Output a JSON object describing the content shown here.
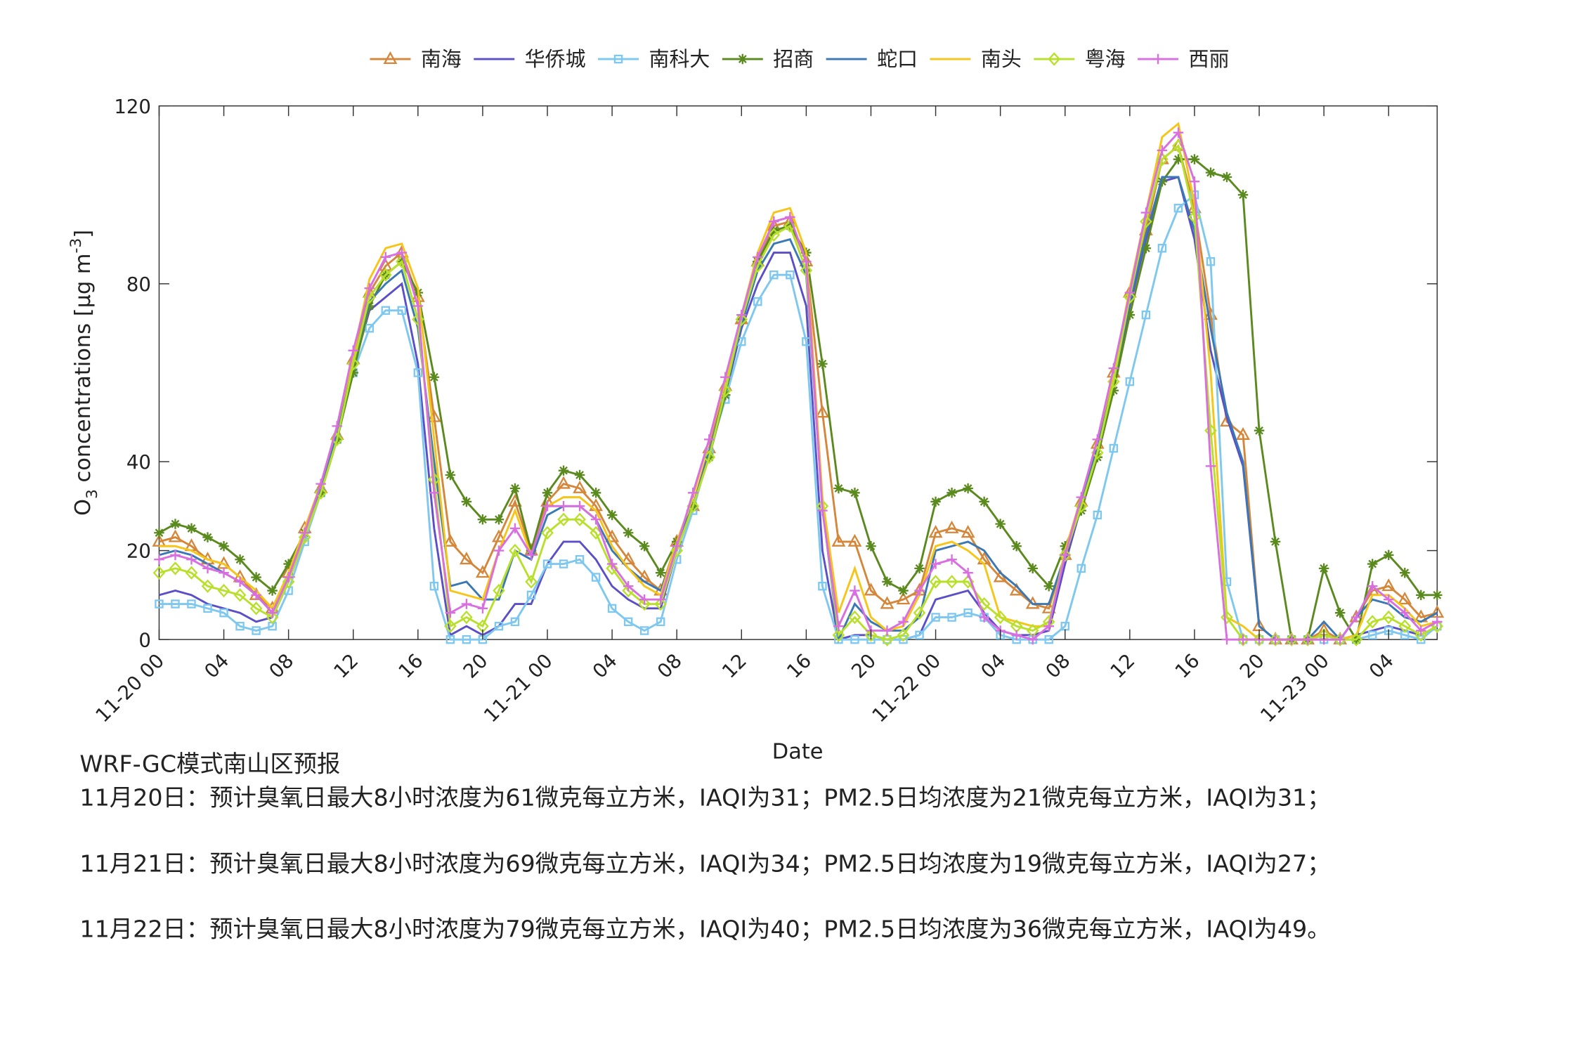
{
  "chart_data": {
    "type": "line",
    "xlabel": "Date",
    "ylabel": [
      "O",
      "3",
      " concentrations [μg m",
      "-3",
      "]"
    ],
    "x": [
      0,
      1,
      2,
      3,
      4,
      5,
      6,
      7,
      8,
      9,
      10,
      11,
      12,
      13,
      14,
      15,
      16,
      17,
      18,
      19,
      20,
      21,
      22,
      23,
      24,
      25,
      26,
      27,
      28,
      29,
      30,
      31,
      32,
      33,
      34,
      35,
      36,
      37,
      38,
      39,
      40,
      41,
      42,
      43,
      44,
      45,
      46,
      47,
      48,
      49,
      50,
      51,
      52,
      53,
      54,
      55,
      56,
      57,
      58,
      59,
      60,
      61,
      62,
      63,
      64,
      65,
      66,
      67,
      68,
      69,
      70,
      71,
      72,
      73,
      74,
      75,
      76,
      77,
      78,
      79
    ],
    "xlim": [
      0,
      79
    ],
    "xticks": [
      {
        "value": 0,
        "label": "11-20 00"
      },
      {
        "value": 4,
        "label": "04"
      },
      {
        "value": 8,
        "label": "08"
      },
      12,
      16,
      20,
      {
        "value": 24,
        "label": "11-21 00"
      },
      {
        "value": 28,
        "label": "04"
      },
      {
        "value": 32,
        "label": "08"
      },
      {
        "value": 36,
        "label": "12"
      },
      {
        "value": 40,
        "label": "16"
      },
      {
        "value": 44,
        "label": "20"
      },
      {
        "value": 48,
        "label": "11-22 00"
      },
      {
        "value": 52,
        "label": "04"
      },
      {
        "value": 56,
        "label": "08"
      },
      {
        "value": 60,
        "label": "12"
      },
      {
        "value": 64,
        "label": "16"
      },
      {
        "value": 68,
        "label": "20"
      },
      {
        "value": 72,
        "label": "11-23 00"
      },
      {
        "value": 76,
        "label": "04"
      }
    ],
    "ylim": [
      0,
      120
    ],
    "yticks": [
      0,
      20,
      40,
      80,
      120
    ],
    "grid": false,
    "legend": "top",
    "series": [
      {
        "name": "南海",
        "color": "#d4873a",
        "marker": "triangle",
        "values": [
          22,
          23,
          21,
          18,
          17,
          14,
          10,
          7,
          15,
          25,
          34,
          46,
          63,
          78,
          84,
          87,
          77,
          50,
          22,
          18,
          15,
          23,
          31,
          20,
          31,
          35,
          34,
          30,
          23,
          18,
          14,
          11,
          22,
          30,
          43,
          57,
          72,
          85,
          93,
          94,
          85,
          51,
          22,
          22,
          11,
          8,
          9,
          11,
          24,
          25,
          24,
          18,
          14,
          11,
          8,
          7,
          19,
          31,
          44,
          60,
          78,
          92,
          108,
          111,
          97,
          73,
          49,
          46,
          3,
          0,
          0,
          0,
          2,
          0,
          5,
          11,
          12,
          9,
          5,
          6
        ]
      },
      {
        "name": "华侨城",
        "color": "#5b4fc8",
        "marker": "none",
        "values": [
          10,
          11,
          10,
          8,
          7,
          6,
          4,
          5,
          13,
          23,
          33,
          45,
          61,
          74,
          77,
          80,
          62,
          25,
          1,
          3,
          1,
          3,
          8,
          8,
          17,
          22,
          22,
          18,
          12,
          9,
          7,
          7,
          20,
          30,
          42,
          55,
          70,
          80,
          87,
          87,
          75,
          20,
          0,
          1,
          1,
          0,
          0,
          1,
          9,
          10,
          11,
          6,
          2,
          1,
          1,
          2,
          17,
          30,
          43,
          58,
          75,
          90,
          103,
          104,
          90,
          65,
          50,
          39,
          3,
          0,
          0,
          0,
          1,
          0,
          1,
          2,
          3,
          2,
          1,
          3
        ]
      },
      {
        "name": "南科大",
        "color": "#7ec8f0",
        "marker": "square",
        "values": [
          8,
          8,
          8,
          7,
          6,
          3,
          2,
          3,
          11,
          22,
          33,
          45,
          60,
          70,
          74,
          74,
          60,
          12,
          0,
          0,
          0,
          3,
          4,
          10,
          17,
          17,
          18,
          14,
          7,
          4,
          2,
          4,
          18,
          29,
          42,
          54,
          67,
          76,
          82,
          82,
          67,
          12,
          0,
          0,
          0,
          0,
          0,
          1,
          5,
          5,
          6,
          5,
          1,
          0,
          0,
          0,
          3,
          16,
          28,
          43,
          58,
          73,
          88,
          97,
          100,
          85,
          13,
          0,
          0,
          0,
          0,
          0,
          0,
          0,
          0,
          1,
          2,
          1,
          0,
          3
        ]
      },
      {
        "name": "招商",
        "color": "#5a8a1e",
        "marker": "star",
        "values": [
          24,
          26,
          25,
          23,
          21,
          18,
          14,
          11,
          17,
          24,
          33,
          45,
          60,
          75,
          82,
          85,
          78,
          59,
          37,
          31,
          27,
          27,
          34,
          20,
          33,
          38,
          37,
          33,
          28,
          24,
          21,
          15,
          22,
          30,
          41,
          55,
          72,
          85,
          92,
          93,
          87,
          62,
          34,
          33,
          21,
          13,
          11,
          16,
          31,
          33,
          34,
          31,
          26,
          21,
          16,
          12,
          21,
          29,
          41,
          56,
          73,
          88,
          103,
          108,
          108,
          105,
          104,
          100,
          47,
          22,
          0,
          0,
          16,
          6,
          0,
          17,
          19,
          15,
          10,
          10
        ]
      },
      {
        "name": "蛇口",
        "color": "#3a78b5",
        "marker": "none",
        "values": [
          19,
          20,
          19,
          17,
          15,
          13,
          10,
          6,
          14,
          23,
          34,
          46,
          62,
          76,
          80,
          83,
          70,
          40,
          12,
          13,
          9,
          9,
          20,
          18,
          28,
          30,
          30,
          27,
          20,
          16,
          13,
          11,
          21,
          30,
          42,
          56,
          71,
          83,
          89,
          90,
          82,
          30,
          0,
          8,
          4,
          2,
          2,
          5,
          20,
          21,
          22,
          20,
          15,
          12,
          8,
          8,
          19,
          31,
          43,
          58,
          76,
          91,
          104,
          104,
          92,
          70,
          51,
          40,
          3,
          0,
          0,
          0,
          4,
          0,
          5,
          9,
          8,
          5,
          4,
          6
        ]
      },
      {
        "name": "南头",
        "color": "#f5c518",
        "marker": "none",
        "values": [
          21,
          21,
          20,
          18,
          17,
          14,
          11,
          7,
          15,
          25,
          35,
          48,
          64,
          81,
          88,
          89,
          79,
          45,
          11,
          10,
          9,
          20,
          29,
          19,
          30,
          32,
          32,
          29,
          21,
          16,
          12,
          10,
          22,
          32,
          45,
          58,
          73,
          87,
          96,
          97,
          87,
          32,
          6,
          16,
          5,
          2,
          3,
          10,
          21,
          22,
          20,
          17,
          5,
          4,
          3,
          3,
          20,
          32,
          45,
          60,
          79,
          96,
          113,
          116,
          98,
          60,
          5,
          3,
          0,
          0,
          0,
          0,
          0,
          0,
          1,
          10,
          10,
          7,
          3,
          4
        ]
      },
      {
        "name": "粤海",
        "color": "#b8e02a",
        "marker": "diamond",
        "values": [
          15,
          16,
          15,
          12,
          11,
          10,
          7,
          5,
          13,
          23,
          33,
          45,
          62,
          77,
          82,
          85,
          72,
          36,
          3,
          5,
          3,
          11,
          20,
          13,
          24,
          27,
          27,
          24,
          16,
          11,
          8,
          8,
          20,
          30,
          41,
          56,
          72,
          84,
          91,
          93,
          83,
          30,
          1,
          5,
          1,
          0,
          1,
          6,
          13,
          13,
          13,
          8,
          5,
          3,
          2,
          4,
          19,
          30,
          42,
          58,
          77,
          94,
          108,
          111,
          95,
          47,
          5,
          0,
          0,
          0,
          0,
          0,
          1,
          0,
          0,
          4,
          5,
          3,
          1,
          3
        ]
      },
      {
        "name": "西丽",
        "color": "#d86ee0",
        "marker": "plus",
        "values": [
          18,
          19,
          18,
          16,
          15,
          13,
          10,
          6,
          14,
          24,
          35,
          48,
          65,
          79,
          86,
          87,
          75,
          33,
          6,
          8,
          7,
          20,
          25,
          19,
          30,
          30,
          30,
          27,
          17,
          12,
          9,
          9,
          21,
          33,
          45,
          59,
          73,
          86,
          94,
          95,
          85,
          29,
          3,
          11,
          2,
          2,
          4,
          11,
          17,
          18,
          15,
          5,
          2,
          1,
          0,
          3,
          19,
          32,
          45,
          61,
          78,
          96,
          110,
          114,
          103,
          39,
          0,
          0,
          0,
          0,
          0,
          0,
          0,
          0,
          5,
          12,
          9,
          6,
          2,
          4
        ]
      }
    ]
  },
  "forecast": {
    "title": "WRF-GC模式南山区预报",
    "lines": [
      "11月20日：预计臭氧日最大8小时浓度为61微克每立方米，IAQI为31；PM2.5日均浓度为21微克每立方米，IAQI为31；",
      "11月21日：预计臭氧日最大8小时浓度为69微克每立方米，IAQI为34；PM2.5日均浓度为19微克每立方米，IAQI为27；",
      "11月22日：预计臭氧日最大8小时浓度为79微克每立方米，IAQI为40；PM2.5日均浓度为36微克每立方米，IAQI为49。"
    ]
  }
}
